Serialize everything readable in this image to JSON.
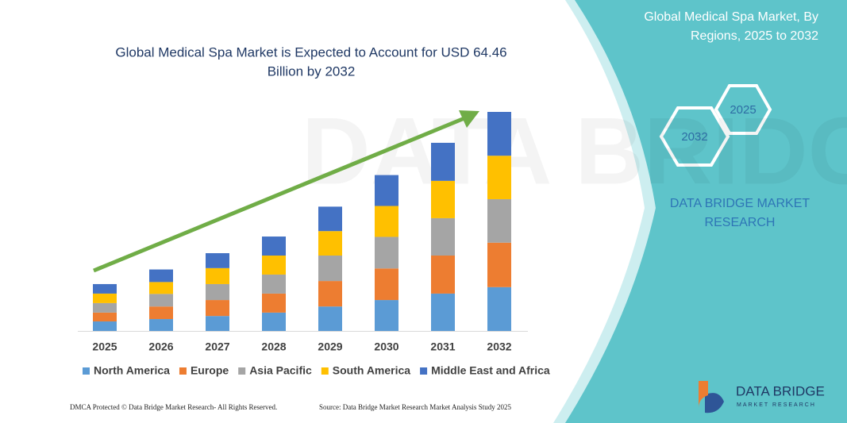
{
  "panel": {
    "title": [
      "Global Medical Spa Market, By",
      "Regions, 2025 to 2032"
    ],
    "badges": [
      "2025",
      "2032"
    ],
    "brand": [
      "DATA BRIDGE MARKET",
      "RESEARCH"
    ]
  },
  "chart_data": {
    "type": "bar",
    "stacked": true,
    "title": [
      "Global Medical Spa Market is Expected to Account for USD 64.46",
      "Billion by 2032"
    ],
    "categories": [
      "2025",
      "2026",
      "2027",
      "2028",
      "2029",
      "2030",
      "2031",
      "2032"
    ],
    "series": [
      {
        "name": "North America",
        "color": "#5b9bd5",
        "values": [
          2.8,
          3.5,
          4.4,
          5.4,
          7.2,
          9.1,
          11.0,
          12.9
        ]
      },
      {
        "name": "Europe",
        "color": "#ed7d31",
        "values": [
          2.6,
          3.7,
          4.7,
          5.6,
          7.5,
          9.3,
          11.2,
          13.1
        ]
      },
      {
        "name": "Asia Pacific",
        "color": "#a5a5a5",
        "values": [
          2.8,
          3.7,
          4.7,
          5.6,
          7.5,
          9.3,
          11.0,
          12.8
        ]
      },
      {
        "name": "South America",
        "color": "#ffc000",
        "values": [
          2.8,
          3.5,
          4.7,
          5.6,
          7.2,
          9.1,
          11.0,
          12.8
        ]
      },
      {
        "name": "Middle East and Africa",
        "color": "#4472c4",
        "values": [
          2.8,
          3.7,
          4.4,
          5.6,
          7.2,
          9.1,
          11.2,
          12.9
        ]
      }
    ]
  },
  "footer": {
    "left": "DMCA Protected © Data Bridge Market Research-  All Rights Reserved.",
    "right": "Source: Data Bridge Market Research  Market Analysis Study 2025"
  },
  "logo": {
    "name": "DATA BRIDGE",
    "tagline": "MARKET RESEARCH"
  }
}
